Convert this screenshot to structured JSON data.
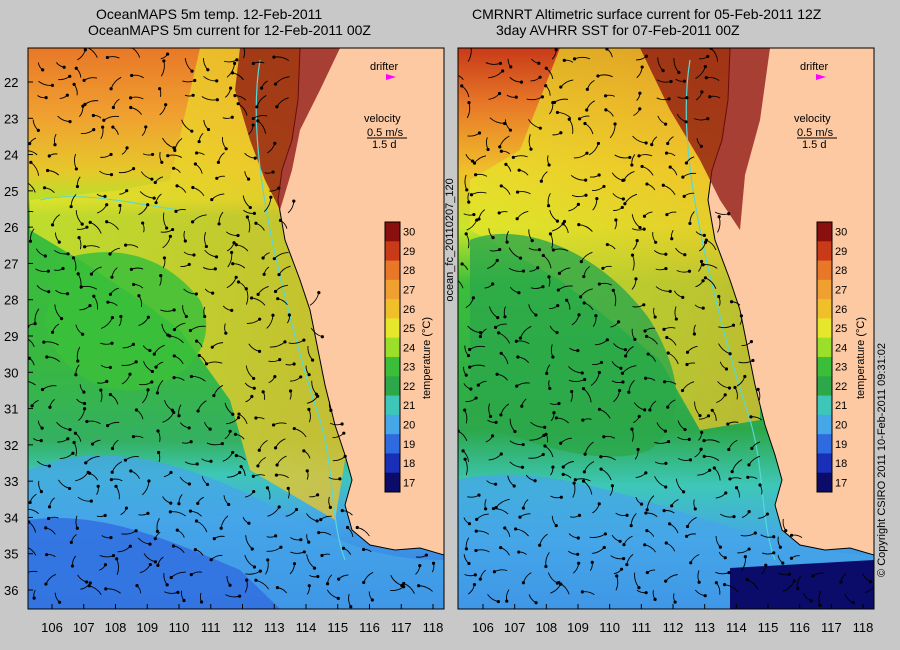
{
  "panels": [
    {
      "id": "left",
      "title_line1": "OceanMAPS 5m temp. 12-Feb-2011",
      "title_line2": "OceanMAPS 5m current for 12-Feb-2011 00Z"
    },
    {
      "id": "right",
      "title_line1": "CMRNRT Altimetric surface current for 05-Feb-2011 12Z",
      "title_line2": "3day AVHRR SST for 07-Feb-2011 00Z"
    }
  ],
  "legend": {
    "drifter_label": "drifter",
    "velocity_label": "velocity",
    "velocity_speed": "0.5 m/s",
    "velocity_time": "1.5 d"
  },
  "colorbar": {
    "label": "temperature (°C)",
    "ticks": [
      "17",
      "18",
      "19",
      "20",
      "21",
      "22",
      "23",
      "24",
      "25",
      "26",
      "27",
      "28",
      "29",
      "30"
    ],
    "colors": [
      "#0b0b6a",
      "#1a2fb8",
      "#2f6be0",
      "#45a6e8",
      "#3ec7b8",
      "#2ca84a",
      "#3bbf3a",
      "#9adf2a",
      "#e6e62a",
      "#f0c02a",
      "#f0a030",
      "#e87828",
      "#c83a18",
      "#8a1010"
    ]
  },
  "axes": {
    "lat_ticks": [
      "22",
      "23",
      "24",
      "25",
      "26",
      "27",
      "28",
      "29",
      "30",
      "31",
      "32",
      "33",
      "34",
      "35",
      "36"
    ],
    "lon_ticks": [
      "106",
      "107",
      "108",
      "109",
      "110",
      "111",
      "112",
      "113",
      "114",
      "115",
      "116",
      "117",
      "118"
    ]
  },
  "side_text": {
    "middle": "ocean_fc_20110207_120",
    "right": "© Copyright CSIRO 2011   10-Feb-2011 09:31:02"
  },
  "colors": {
    "land": "#fdc9a2",
    "background": "#c8c8c8",
    "coast": "#000000",
    "contour": "#56d8d8",
    "drifter": "#ff00ff"
  }
}
